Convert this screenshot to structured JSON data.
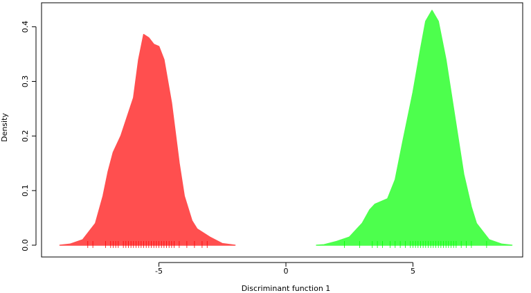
{
  "chart_data": {
    "type": "area",
    "x_label": "Discriminant function 1",
    "y_label": "Density",
    "xlim": [
      -9.62,
      9.32
    ],
    "ylim": [
      -0.0216,
      0.444
    ],
    "xticks": [
      -5,
      0,
      5
    ],
    "yticks": [
      {
        "value": 0,
        "label": "0.0"
      },
      0.1,
      0.2,
      0.3,
      0.4
    ],
    "series": [
      {
        "color": "#ff4f4f",
        "rug_color": "#ff0000",
        "x": [
          -8.9,
          -8.5,
          -8,
          -7.5,
          -7.2,
          -7,
          -6.8,
          -6.5,
          -6,
          -5.8,
          -5.6,
          -5.4,
          -5.2,
          -5,
          -4.8,
          -4.5,
          -4.2,
          -4,
          -3.7,
          -3.5,
          -3,
          -2.5,
          -2
        ],
        "values": [
          0,
          0.002,
          0.01,
          0.04,
          0.09,
          0.135,
          0.17,
          0.2,
          0.27,
          0.34,
          0.386,
          0.38,
          0.368,
          0.364,
          0.34,
          0.26,
          0.15,
          0.09,
          0.045,
          0.03,
          0.015,
          0.003,
          0
        ],
        "rug": [
          -7.8,
          -7.6,
          -7.1,
          -6.9,
          -6.8,
          -6.7,
          -6.6,
          -6.4,
          -6.3,
          -6.2,
          -6.1,
          -6.0,
          -5.9,
          -5.8,
          -5.7,
          -5.6,
          -5.5,
          -5.4,
          -5.3,
          -5.2,
          -5.1,
          -5.0,
          -4.9,
          -4.8,
          -4.7,
          -4.6,
          -4.5,
          -4.4,
          -4.2,
          -3.9,
          -3.6,
          -3.3,
          -3.1
        ]
      },
      {
        "color": "#4dff4d",
        "rug_color": "#00ff00",
        "x": [
          1.2,
          1.5,
          2,
          2.5,
          3,
          3.3,
          3.5,
          4,
          4.3,
          4.6,
          5,
          5.3,
          5.5,
          5.75,
          6,
          6.3,
          6.5,
          7,
          7.3,
          7.5,
          8,
          8.5,
          8.9
        ],
        "values": [
          0,
          0.001,
          0.007,
          0.015,
          0.04,
          0.065,
          0.075,
          0.085,
          0.12,
          0.19,
          0.28,
          0.36,
          0.41,
          0.43,
          0.41,
          0.34,
          0.28,
          0.13,
          0.07,
          0.04,
          0.01,
          0.002,
          0
        ],
        "rug": [
          2.3,
          2.9,
          3.4,
          3.6,
          3.8,
          4.1,
          4.3,
          4.5,
          4.7,
          4.9,
          5.0,
          5.1,
          5.2,
          5.3,
          5.4,
          5.5,
          5.6,
          5.7,
          5.8,
          5.9,
          6.0,
          6.1,
          6.2,
          6.3,
          6.4,
          6.5,
          6.6,
          6.7,
          6.9,
          7.1,
          7.3,
          7.9
        ]
      }
    ]
  }
}
